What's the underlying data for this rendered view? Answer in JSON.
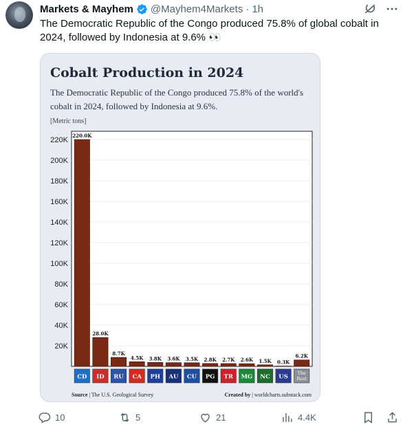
{
  "post": {
    "author_name": "Markets & Mayhem",
    "handle": "@Mayhem4Markets",
    "separator": "·",
    "time": "1h",
    "text": "The Democratic Republic of the Congo produced 75.8% of global cobalt in 2024, followed by Indonesia at 9.6% 👀",
    "icons": {
      "verified": "verified-badge-icon",
      "grok": "grok-icon",
      "more": "more-icon"
    }
  },
  "card": {
    "title": "Cobalt Production in 2024",
    "subtitle": "The Democratic Republic of the Congo produced 75.8% of the world's cobalt in 2024, followed by Indonesia at 9.6%.",
    "unit_label": "[Metric tons]",
    "source_label": "Source",
    "source_text": "The U.S. Geological Survey",
    "created_label": "Created by",
    "created_text": "worldcharts.substack.com"
  },
  "chart_data": {
    "type": "bar",
    "title": "Cobalt Production in 2024",
    "ylabel": "",
    "xlabel": "",
    "ylim": [
      0,
      228000
    ],
    "yticks": [
      20000,
      40000,
      60000,
      80000,
      100000,
      120000,
      140000,
      160000,
      180000,
      200000,
      220000
    ],
    "ytick_labels": [
      "20K",
      "40K",
      "60K",
      "80K",
      "100K",
      "120K",
      "140K",
      "160K",
      "180K",
      "200K",
      "220K"
    ],
    "grid": true,
    "bar_color": "#7a2a14",
    "categories": [
      "CD",
      "ID",
      "RU",
      "CA",
      "PH",
      "AU",
      "CU",
      "PG",
      "TR",
      "MG",
      "NC",
      "US",
      "The Rest"
    ],
    "values": [
      220000,
      28000,
      8700,
      4500,
      3800,
      3600,
      3500,
      2800,
      2700,
      2600,
      1500,
      300,
      6200
    ],
    "data_labels": [
      "220.0K",
      "28.0K",
      "8.7K",
      "4.5K",
      "3.8K",
      "3.6K",
      "3.5K",
      "2.8K",
      "2.7K",
      "2.6K",
      "1.5K",
      "0.3K",
      "6.2K"
    ],
    "flag_colors": [
      "#1e6fc9",
      "#c9302c",
      "#2b55a8",
      "#d52b1e",
      "#1f3f9c",
      "#16307a",
      "#1d4fa3",
      "#111111",
      "#d0202a",
      "#1a8a3a",
      "#1d6e2a",
      "#2a3b8f",
      "#8a8f99"
    ]
  },
  "actions": {
    "replies": "10",
    "reposts": "5",
    "likes": "21",
    "views": "4.4K"
  }
}
